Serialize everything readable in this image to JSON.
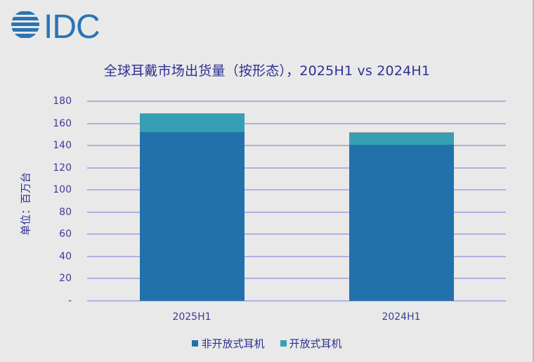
{
  "logo": {
    "text": "IDC",
    "color": "#2b74b5"
  },
  "colors": {
    "non_open": "#2271ab",
    "open": "#369fb4",
    "gridline": "#b2b0e0",
    "text": "#2e3192",
    "background": "#e9e9e9"
  },
  "chart_data": {
    "type": "bar",
    "stacked": true,
    "title": "全球耳戴市场出货量（按形态），2025H1 vs 2024H1",
    "xlabel": "",
    "ylabel": "单位：百万台",
    "categories": [
      "2025H1",
      "2024H1"
    ],
    "series": [
      {
        "name": "非开放式耳机",
        "color": "#2271ab",
        "values": [
          152,
          141
        ]
      },
      {
        "name": "开放式耳机",
        "color": "#369fb4",
        "values": [
          17,
          11
        ]
      }
    ],
    "totals": [
      169,
      152
    ],
    "ylim": [
      0,
      180
    ],
    "yticks": [
      "-",
      "20",
      "40",
      "60",
      "80",
      "100",
      "120",
      "140",
      "160",
      "180"
    ],
    "ytick_values": [
      0,
      20,
      40,
      60,
      80,
      100,
      120,
      140,
      160,
      180
    ],
    "grid": true,
    "legend_position": "bottom"
  }
}
